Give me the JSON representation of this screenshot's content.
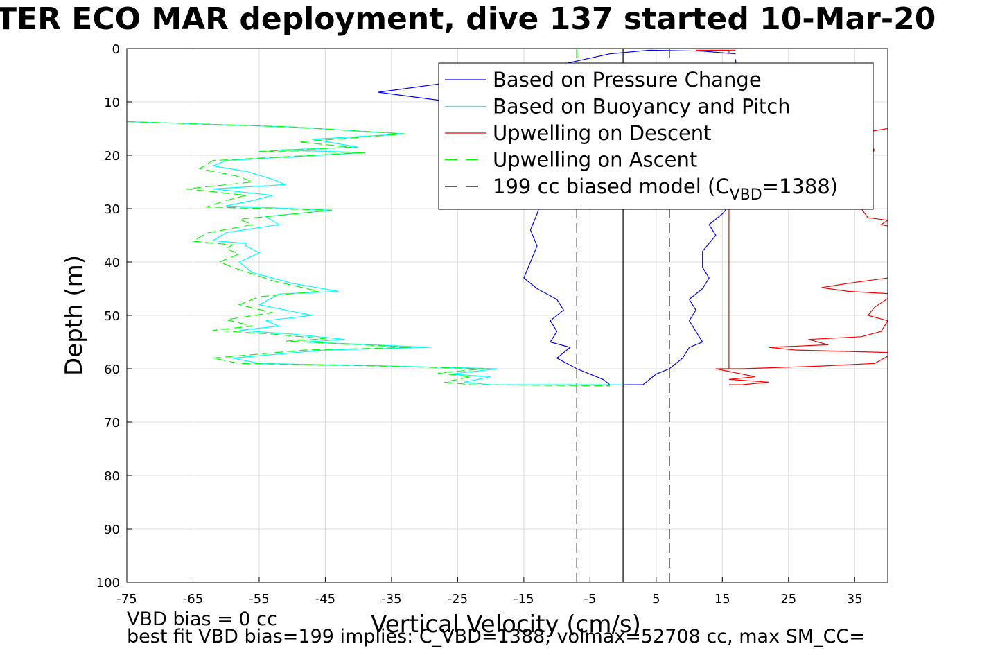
{
  "chart_data": {
    "type": "line",
    "title": "TER ECO MAR deployment, dive 137 started 10-Mar-20",
    "xlabel": "Vertical Velocity (cm/s)",
    "ylabel": "Depth (m)",
    "xlim": [
      -75,
      40
    ],
    "ylim": [
      0,
      100
    ],
    "y_reversed": true,
    "grid": true,
    "xticks": [
      -75,
      -65,
      -55,
      -45,
      -35,
      -25,
      -15,
      -5,
      5,
      15,
      25,
      35
    ],
    "yticks": [
      0,
      10,
      20,
      30,
      40,
      50,
      60,
      70,
      80,
      90,
      100
    ],
    "legend_position": "top-right",
    "legend": [
      {
        "label": "Based on Pressure Change",
        "color": "#0000ff",
        "dash": "solid"
      },
      {
        "label": "Based on Buoyancy and Pitch",
        "color": "#00ffff",
        "dash": "solid"
      },
      {
        "label": "Upwelling on Descent",
        "color": "#ff0000",
        "dash": "solid"
      },
      {
        "label": "Upwelling on Ascent",
        "color": "#00ff00",
        "dash": "dashed"
      },
      {
        "label": "199 cc biased model (C",
        "sub": "VBD",
        "suffix": "=1388)",
        "color": "#000000",
        "dash": "dashed"
      }
    ],
    "series": [
      {
        "name": "Based on Pressure Change",
        "color": "#0000ff",
        "dash": "solid",
        "points": [
          [
            17,
            1
          ],
          [
            12,
            0.5
          ],
          [
            4,
            0.3
          ],
          [
            -2,
            1
          ],
          [
            -15,
            4.5
          ],
          [
            -24,
            6
          ],
          [
            -37,
            8.2
          ],
          [
            -26,
            10
          ],
          [
            -18,
            12
          ],
          [
            -11,
            16
          ],
          [
            -8,
            20
          ],
          [
            -10,
            24
          ],
          [
            -12,
            27
          ],
          [
            -13,
            31
          ],
          [
            -14,
            34
          ],
          [
            -13,
            37
          ],
          [
            -14,
            40
          ],
          [
            -15,
            43
          ],
          [
            -13,
            45
          ],
          [
            -10,
            47
          ],
          [
            -9,
            49
          ],
          [
            -11,
            51
          ],
          [
            -10,
            53
          ],
          [
            -11,
            55
          ],
          [
            -8,
            56
          ],
          [
            -10,
            58
          ],
          [
            -7,
            60
          ],
          [
            -5,
            61
          ],
          [
            -3,
            62
          ],
          [
            -2,
            63
          ],
          [
            0,
            63
          ],
          [
            3,
            63
          ],
          [
            4,
            62
          ],
          [
            5,
            61
          ],
          [
            7,
            60
          ],
          [
            9,
            58
          ],
          [
            10,
            56
          ],
          [
            12,
            55
          ],
          [
            11,
            53
          ],
          [
            10,
            51
          ],
          [
            11,
            49
          ],
          [
            10,
            47
          ],
          [
            12,
            45
          ],
          [
            13,
            43
          ],
          [
            12,
            41
          ],
          [
            12,
            38
          ],
          [
            14,
            35
          ],
          [
            13,
            33
          ],
          [
            15,
            31
          ],
          [
            17,
            28
          ],
          [
            19,
            22
          ],
          [
            18,
            14
          ],
          [
            17,
            2
          ]
        ]
      },
      {
        "name": "Based on Buoyancy and Pitch",
        "color": "#00ffff",
        "dash": "solid",
        "points": [
          [
            -75,
            13.7
          ],
          [
            -50,
            14.7
          ],
          [
            -33,
            16
          ],
          [
            -47,
            17
          ],
          [
            -40,
            18.5
          ],
          [
            -52,
            19
          ],
          [
            -39,
            19.5
          ],
          [
            -60,
            21
          ],
          [
            -62,
            22
          ],
          [
            -57,
            23
          ],
          [
            -53,
            24.5
          ],
          [
            -51,
            25.5
          ],
          [
            -62,
            26.3
          ],
          [
            -53,
            27.5
          ],
          [
            -56,
            28.5
          ],
          [
            -60,
            29.5
          ],
          [
            -44,
            30.3
          ],
          [
            -54,
            31.5
          ],
          [
            -52,
            33
          ],
          [
            -60,
            34.5
          ],
          [
            -62,
            36
          ],
          [
            -57,
            36.5
          ],
          [
            -57,
            37
          ],
          [
            -55,
            38.3
          ],
          [
            -58,
            40
          ],
          [
            -56,
            42
          ],
          [
            -50,
            44
          ],
          [
            -43,
            45.5
          ],
          [
            -52,
            46
          ],
          [
            -55,
            48
          ],
          [
            -51,
            49
          ],
          [
            -47,
            50
          ],
          [
            -54,
            51
          ],
          [
            -52,
            52
          ],
          [
            -58,
            52.8
          ],
          [
            -50,
            53.5
          ],
          [
            -42,
            54.5
          ],
          [
            -48,
            55
          ],
          [
            -38,
            55.5
          ],
          [
            -29,
            56
          ],
          [
            -45,
            56.5
          ],
          [
            -59,
            58
          ],
          [
            -55,
            59
          ],
          [
            -35,
            59.5
          ],
          [
            -19,
            60
          ],
          [
            -26,
            61
          ],
          [
            -20,
            61.5
          ],
          [
            -24,
            62.5
          ],
          [
            -20,
            63
          ],
          [
            0,
            63
          ]
        ]
      },
      {
        "name": "Upwelling on Ascent",
        "color": "#00ff00",
        "dash": "dashed",
        "points": [
          [
            -75,
            13.7
          ],
          [
            -50,
            14.7
          ],
          [
            -33,
            16
          ],
          [
            -49,
            17.5
          ],
          [
            -41,
            18.5
          ],
          [
            -55,
            19.3
          ],
          [
            -39,
            19.5
          ],
          [
            -62,
            21
          ],
          [
            -64,
            22.5
          ],
          [
            -58,
            24
          ],
          [
            -56,
            25
          ],
          [
            -66,
            26.3
          ],
          [
            -57,
            27.5
          ],
          [
            -60,
            28.5
          ],
          [
            -63,
            29.7
          ],
          [
            -44,
            30.3
          ],
          [
            -58,
            32
          ],
          [
            -56,
            33
          ],
          [
            -63,
            34.6
          ],
          [
            -65,
            36.1
          ],
          [
            -59,
            36.8
          ],
          [
            -60,
            37.5
          ],
          [
            -58,
            38.5
          ],
          [
            -61,
            40
          ],
          [
            -59,
            41
          ],
          [
            -53,
            43.5
          ],
          [
            -46,
            45.5
          ],
          [
            -55,
            46.5
          ],
          [
            -58,
            48
          ],
          [
            -53,
            49.5
          ],
          [
            -60,
            50.8
          ],
          [
            -56,
            52
          ],
          [
            -62,
            52.8
          ],
          [
            -53,
            53.5
          ],
          [
            -45,
            54.4
          ],
          [
            -51,
            54.8
          ],
          [
            -41,
            55.4
          ],
          [
            -32,
            56
          ],
          [
            -48,
            56.5
          ],
          [
            -62,
            58
          ],
          [
            -58,
            59
          ],
          [
            -37,
            59.5
          ],
          [
            -21,
            60
          ],
          [
            -28,
            60.8
          ],
          [
            -23,
            61.5
          ],
          [
            -27,
            62.5
          ],
          [
            -23,
            63
          ],
          [
            -2,
            63.2
          ]
        ]
      },
      {
        "name": "Upwelling on Descent",
        "color": "#ff0000",
        "dash": "solid",
        "points": [
          [
            16,
            30.2
          ],
          [
            16,
            32
          ],
          [
            16,
            36
          ],
          [
            16,
            40
          ],
          [
            16,
            44
          ],
          [
            16,
            48
          ],
          [
            16,
            52
          ],
          [
            16,
            56
          ],
          [
            16,
            60
          ]
        ]
      },
      {
        "name": "Upwelling on Descent (right)",
        "color": "#ff0000",
        "dash": "solid",
        "points": [
          [
            40,
            15
          ],
          [
            35,
            16
          ],
          [
            38,
            19
          ],
          [
            36,
            22
          ],
          [
            34,
            24
          ],
          [
            37,
            26
          ],
          [
            35,
            28
          ],
          [
            36,
            30
          ],
          [
            37,
            31.7
          ],
          [
            40,
            32.2
          ],
          [
            39,
            33
          ],
          [
            41,
            33.5
          ],
          [
            40,
            43
          ],
          [
            34,
            44
          ],
          [
            30,
            44.8
          ],
          [
            34,
            45.5
          ],
          [
            41,
            46
          ],
          [
            38,
            48.5
          ],
          [
            37,
            50
          ],
          [
            40,
            51
          ],
          [
            39,
            53
          ],
          [
            36,
            54
          ],
          [
            28,
            54.5
          ],
          [
            31,
            55.5
          ],
          [
            22,
            56
          ],
          [
            26,
            56.5
          ],
          [
            41,
            57
          ],
          [
            38,
            59
          ],
          [
            30,
            59.5
          ],
          [
            18,
            60
          ],
          [
            14,
            60
          ],
          [
            18,
            61
          ],
          [
            20,
            61.5
          ],
          [
            16,
            62
          ],
          [
            22,
            62.5
          ],
          [
            18,
            63
          ],
          [
            16,
            63
          ]
        ]
      },
      {
        "name": "Upwelling on Descent (top)",
        "color": "#ff0000",
        "dash": "solid",
        "points": [
          [
            17,
            0.3
          ],
          [
            11,
            0.3
          ],
          [
            16,
            0.4
          ],
          [
            16,
            1
          ]
        ]
      }
    ],
    "vlines": [
      {
        "x": -7,
        "color": "#000000",
        "dash": "dashed"
      },
      {
        "x": 7,
        "color": "#000000",
        "dash": "dashed"
      },
      {
        "x": 0,
        "color": "#000000",
        "dash": "solid"
      },
      {
        "x": -7,
        "y": [
          0,
          2
        ],
        "color": "#00ff00",
        "dash": "dashed"
      }
    ]
  },
  "notes": {
    "line1": "VBD bias = 0 cc",
    "line2": "best fit VBD bias=199 implies: C_VBD=1388, volmax=52708 cc, max SM_CC="
  }
}
